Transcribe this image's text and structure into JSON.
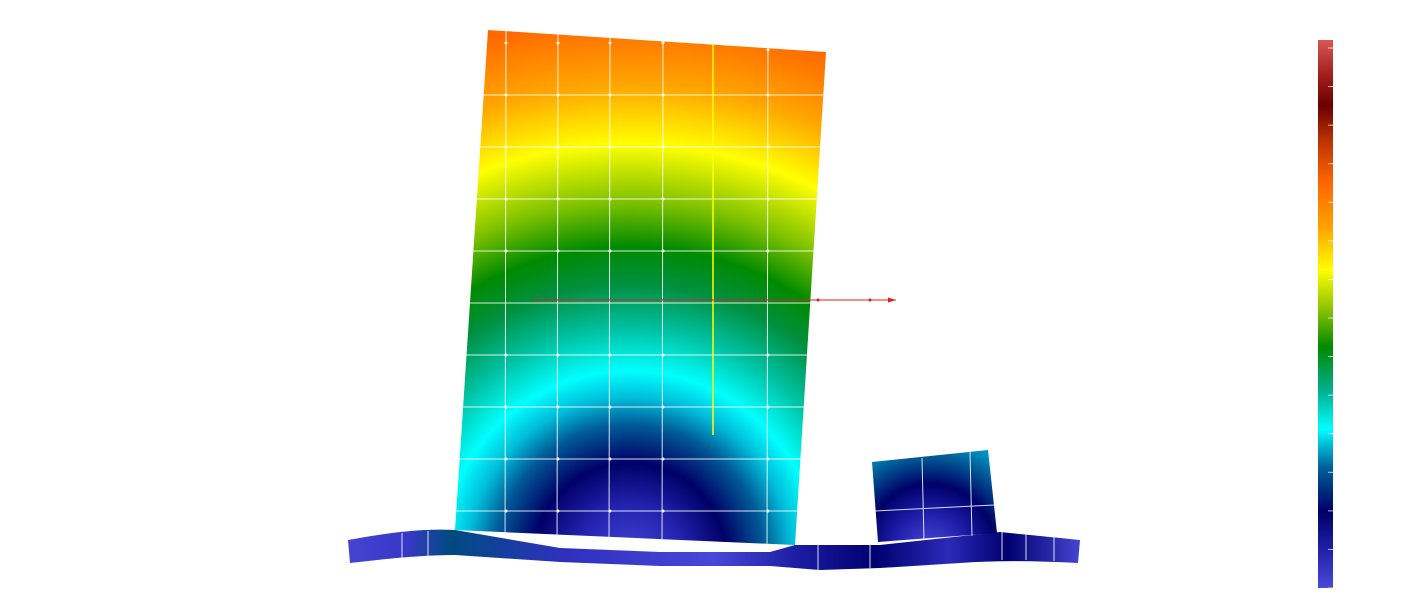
{
  "view": {
    "background": "#ffffff",
    "colormap": [
      "#4a4ad8",
      "#1a1aa0",
      "#000066",
      "#005f9a",
      "#00ffff",
      "#00b090",
      "#008a00",
      "#8ec400",
      "#ffff00",
      "#ffa000",
      "#ff6600",
      "#b83000",
      "#6a0000",
      "#d65858"
    ],
    "colorbar": {
      "tick_count": 15
    },
    "mesh_line_color": "#ffffff",
    "load_arrow_color": "#e02020",
    "crack_line_color": "#ffff00"
  }
}
